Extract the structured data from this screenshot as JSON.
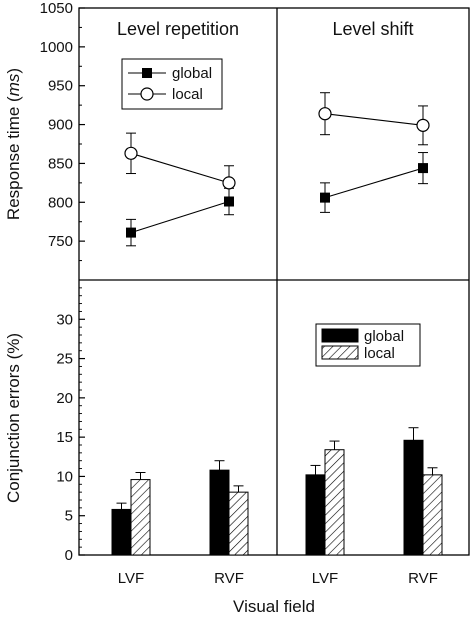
{
  "chart_data": [
    {
      "type": "line",
      "panel": "top",
      "ylabel_prefix": "Response time (",
      "ylabel_unit": "ms",
      "ylabel_suffix": ")",
      "ylim": [
        700,
        1050
      ],
      "yticks": [
        750,
        800,
        850,
        900,
        950,
        1000,
        1050
      ],
      "categories": [
        "LVF",
        "RVF"
      ],
      "legend_position": "top-left",
      "legend": [
        "global",
        "local"
      ],
      "subplots": [
        {
          "title": "Level repetition",
          "series": [
            {
              "name": "global",
              "marker": "filled-square",
              "values": [
                761,
                801
              ],
              "errors": [
                17,
                17
              ]
            },
            {
              "name": "local",
              "marker": "open-circle",
              "values": [
                863,
                825
              ],
              "errors": [
                26,
                22
              ]
            }
          ]
        },
        {
          "title": "Level shift",
          "series": [
            {
              "name": "global",
              "marker": "filled-square",
              "values": [
                806,
                844
              ],
              "errors": [
                19,
                20
              ]
            },
            {
              "name": "local",
              "marker": "open-circle",
              "values": [
                914,
                899
              ],
              "errors": [
                27,
                25
              ]
            }
          ]
        }
      ]
    },
    {
      "type": "bar",
      "panel": "bottom",
      "ylabel": "Conjunction errors (%)",
      "xlabel": "Visual field",
      "ylim": [
        0,
        35
      ],
      "yticks": [
        0,
        5,
        10,
        15,
        20,
        25,
        30
      ],
      "categories": [
        "LVF",
        "RVF"
      ],
      "legend_position": "top-right",
      "legend": [
        "global",
        "local"
      ],
      "subplots": [
        {
          "series": [
            {
              "name": "global",
              "fill": "solid",
              "values": [
                5.8,
                10.8
              ],
              "errors": [
                0.8,
                1.2
              ]
            },
            {
              "name": "local",
              "fill": "hatched",
              "values": [
                9.6,
                8.0
              ],
              "errors": [
                0.9,
                0.8
              ]
            }
          ]
        },
        {
          "series": [
            {
              "name": "global",
              "fill": "solid",
              "values": [
                10.2,
                14.6
              ],
              "errors": [
                1.2,
                1.6
              ]
            },
            {
              "name": "local",
              "fill": "hatched",
              "values": [
                13.4,
                10.2
              ],
              "errors": [
                1.1,
                0.9
              ]
            }
          ]
        }
      ]
    }
  ],
  "colors": {
    "ink": "#000000",
    "background": "#ffffff"
  }
}
